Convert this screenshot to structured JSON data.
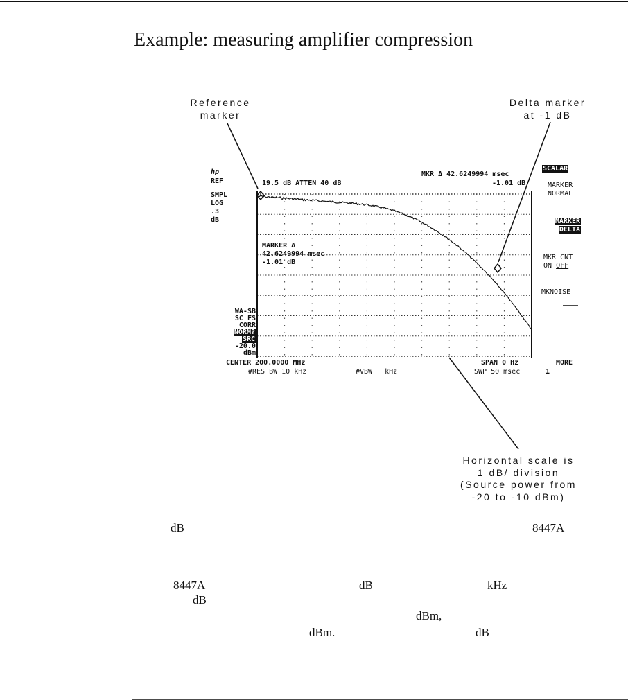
{
  "title": "Example: measuring amplifier compression",
  "annotations": {
    "reference": [
      "Reference",
      "marker"
    ],
    "delta": [
      "Delta marker",
      "at -1 dB"
    ],
    "horizontal": [
      "Horizontal scale is",
      "1 dB/ division",
      "(Source power from",
      "-20 to -10 dBm)"
    ]
  },
  "screen": {
    "logo": "hp",
    "ref": "REF",
    "ref_value": "19.5 dB  ATTEN 40 dB",
    "mkr_readout": "MKR Δ 42.6249994 msec",
    "mkr_value": "-1.01 dB",
    "left": [
      "SMPL",
      "LOG",
      ".3",
      "dB"
    ],
    "left_lower": [
      "WA-SB",
      "SC FS",
      "CORR"
    ],
    "norm": "NORM?",
    "src": "SRC",
    "ref_level": [
      "-20.0",
      "dBm"
    ],
    "marker_box": [
      "MARKER Δ",
      "42.6249994 msec",
      "-1.01 dB"
    ],
    "center": "CENTER 200.0000 MHz",
    "span": "SPAN 0 Hz",
    "res_bw": "#RES BW 10 kHz",
    "vbw": "#VBW   kHz",
    "swp": "SWP 50 msec",
    "softkeys": {
      "scalar": "SCALAR",
      "marker_normal": [
        "MARKER",
        "NORMAL"
      ],
      "marker_delta": [
        "MARKER",
        "DELTA"
      ],
      "mkr_cnt": [
        "MKR CNT",
        "ON"
      ],
      "off": "OFF",
      "mknoise": "MKNOISE",
      "more": "MORE",
      "page": "1"
    }
  },
  "body_fragments": [
    "dB",
    "8447A",
    "8447A",
    "dB",
    "kHz",
    "dB",
    "dBm,",
    "dBm.",
    "dB"
  ]
}
